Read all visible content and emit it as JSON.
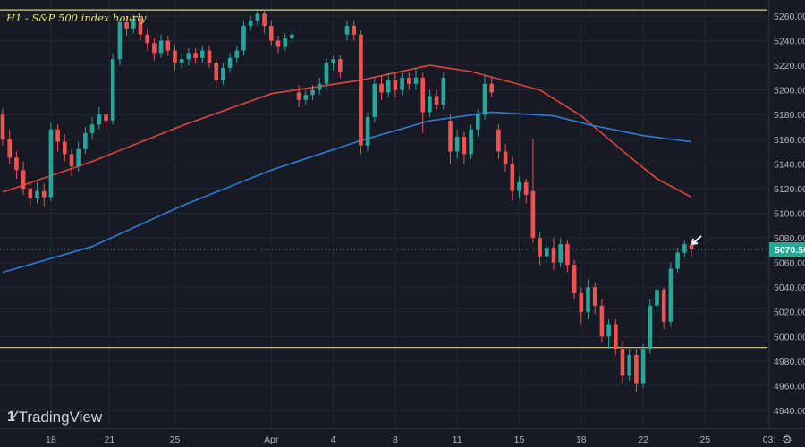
{
  "title": "H1 - S&P 500 index hourly",
  "brand": "TradingView",
  "colors": {
    "background": "#161a25",
    "up": "#26a69a",
    "down": "#ef5350",
    "ma_red": "#e0443e",
    "ma_blue": "#2f7bd6",
    "level_line": "#d9d27a",
    "grid": "#232733",
    "last_price": "#22ab94"
  },
  "chart_data": {
    "type": "candlestick",
    "title": "H1 - S&P 500 index hourly",
    "y_ticks": [
      5260,
      5240,
      5220,
      5200,
      5180,
      5160,
      5140,
      5120,
      5100,
      5080,
      5060,
      5040,
      5020,
      5000,
      4980,
      4960,
      4940
    ],
    "y_tick_labels": [
      "5260.00",
      "5240.00",
      "5220.00",
      "5200.00",
      "5180.00",
      "5160.00",
      "5140.00",
      "5120.00",
      "5100.00",
      "5080.00",
      "5060.00",
      "5040.00",
      "5020.00",
      "5000.00",
      "4980.00",
      "4960.00",
      "4940.00"
    ],
    "ylim": [
      4932,
      5273
    ],
    "x_tick_labels": [
      {
        "label": "18",
        "bar": 7
      },
      {
        "label": "21",
        "bar": 15.5
      },
      {
        "label": "25",
        "bar": 25
      },
      {
        "label": "Apr",
        "bar": 39
      },
      {
        "label": "4",
        "bar": 48
      },
      {
        "label": "8",
        "bar": 57
      },
      {
        "label": "11",
        "bar": 66
      },
      {
        "label": "15",
        "bar": 75
      },
      {
        "label": "18",
        "bar": 84
      },
      {
        "label": "22",
        "bar": 93
      },
      {
        "label": "25",
        "bar": 102
      },
      {
        "label": "03:",
        "bar": 110
      }
    ],
    "last_price": 5070.56,
    "last_price_label": "5070.56",
    "horizontal_levels": [
      5265,
      4991
    ],
    "grid": true,
    "candles_ohlc": [
      [
        5180,
        5185,
        5155,
        5160
      ],
      [
        5160,
        5168,
        5140,
        5145
      ],
      [
        5145,
        5150,
        5128,
        5135
      ],
      [
        5135,
        5142,
        5115,
        5120
      ],
      [
        5120,
        5126,
        5106,
        5112
      ],
      [
        5112,
        5125,
        5108,
        5118
      ],
      [
        5118,
        5124,
        5105,
        5113
      ],
      [
        5113,
        5174,
        5110,
        5168
      ],
      [
        5168,
        5172,
        5150,
        5158
      ],
      [
        5158,
        5164,
        5142,
        5148
      ],
      [
        5148,
        5152,
        5130,
        5138
      ],
      [
        5138,
        5158,
        5134,
        5152
      ],
      [
        5152,
        5170,
        5148,
        5165
      ],
      [
        5165,
        5178,
        5160,
        5172
      ],
      [
        5172,
        5186,
        5168,
        5180
      ],
      [
        5180,
        5184,
        5168,
        5175
      ],
      [
        5175,
        5230,
        5172,
        5225
      ],
      [
        5225,
        5258,
        5220,
        5255
      ],
      [
        5255,
        5260,
        5244,
        5250
      ],
      [
        5250,
        5261,
        5246,
        5258
      ],
      [
        5258,
        5260,
        5240,
        5245
      ],
      [
        5245,
        5250,
        5232,
        5238
      ],
      [
        5238,
        5242,
        5224,
        5230
      ],
      [
        5230,
        5245,
        5226,
        5240
      ],
      [
        5240,
        5244,
        5228,
        5232
      ],
      [
        5232,
        5236,
        5216,
        5222
      ],
      [
        5222,
        5230,
        5218,
        5225
      ],
      [
        5225,
        5234,
        5220,
        5230
      ],
      [
        5230,
        5234,
        5222,
        5226
      ],
      [
        5226,
        5236,
        5222,
        5232
      ],
      [
        5232,
        5236,
        5218,
        5222
      ],
      [
        5222,
        5226,
        5202,
        5208
      ],
      [
        5208,
        5222,
        5204,
        5218
      ],
      [
        5218,
        5230,
        5214,
        5226
      ],
      [
        5226,
        5236,
        5222,
        5232
      ],
      [
        5232,
        5256,
        5228,
        5252
      ],
      [
        5252,
        5260,
        5248,
        5256
      ],
      [
        5256,
        5266,
        5252,
        5262
      ],
      [
        5262,
        5265,
        5246,
        5252
      ],
      [
        5252,
        5256,
        5236,
        5240
      ],
      [
        5240,
        5244,
        5230,
        5235
      ],
      [
        5235,
        5246,
        5232,
        5242
      ],
      [
        5242,
        5248,
        5238,
        5245
      ],
      [
        5198,
        5204,
        5186,
        5192
      ],
      [
        5192,
        5200,
        5188,
        5196
      ],
      [
        5196,
        5204,
        5192,
        5200
      ],
      [
        5200,
        5210,
        5196,
        5205
      ],
      [
        5205,
        5226,
        5200,
        5222
      ],
      [
        5222,
        5228,
        5216,
        5225
      ],
      [
        5225,
        5228,
        5210,
        5215
      ],
      [
        5245,
        5256,
        5240,
        5252
      ],
      [
        5252,
        5256,
        5240,
        5245
      ],
      [
        5245,
        5248,
        5148,
        5155
      ],
      [
        5155,
        5182,
        5150,
        5178
      ],
      [
        5178,
        5210,
        5174,
        5205
      ],
      [
        5205,
        5212,
        5192,
        5198
      ],
      [
        5198,
        5214,
        5194,
        5208
      ],
      [
        5208,
        5214,
        5194,
        5200
      ],
      [
        5200,
        5214,
        5196,
        5210
      ],
      [
        5210,
        5214,
        5200,
        5205
      ],
      [
        5205,
        5218,
        5200,
        5210
      ],
      [
        5210,
        5214,
        5165,
        5182
      ],
      [
        5182,
        5200,
        5178,
        5195
      ],
      [
        5195,
        5200,
        5184,
        5188
      ],
      [
        5188,
        5214,
        5184,
        5210
      ],
      [
        5175,
        5180,
        5140,
        5150
      ],
      [
        5150,
        5168,
        5144,
        5162
      ],
      [
        5162,
        5166,
        5140,
        5148
      ],
      [
        5148,
        5172,
        5144,
        5168
      ],
      [
        5168,
        5184,
        5162,
        5180
      ],
      [
        5180,
        5212,
        5176,
        5205
      ],
      [
        5205,
        5210,
        5194,
        5198
      ],
      [
        5168,
        5172,
        5144,
        5150
      ],
      [
        5150,
        5156,
        5134,
        5140
      ],
      [
        5140,
        5146,
        5110,
        5118
      ],
      [
        5118,
        5130,
        5112,
        5125
      ],
      [
        5125,
        5128,
        5108,
        5115
      ],
      [
        5118,
        5160,
        5076,
        5080
      ],
      [
        5080,
        5085,
        5058,
        5065
      ],
      [
        5065,
        5078,
        5060,
        5072
      ],
      [
        5072,
        5080,
        5054,
        5060
      ],
      [
        5060,
        5080,
        5056,
        5075
      ],
      [
        5075,
        5078,
        5052,
        5058
      ],
      [
        5058,
        5062,
        5030,
        5035
      ],
      [
        5035,
        5040,
        5010,
        5020
      ],
      [
        5020,
        5046,
        5014,
        5040
      ],
      [
        5040,
        5044,
        5018,
        5025
      ],
      [
        5025,
        5030,
        4995,
        5000
      ],
      [
        5000,
        5014,
        4990,
        5010
      ],
      [
        5010,
        5014,
        4985,
        4990
      ],
      [
        4990,
        4996,
        4962,
        4968
      ],
      [
        4968,
        4990,
        4964,
        4985
      ],
      [
        4985,
        4990,
        4955,
        4962
      ],
      [
        4962,
        4994,
        4958,
        4990
      ],
      [
        4990,
        5030,
        4986,
        5025
      ],
      [
        5025,
        5042,
        5020,
        5038
      ],
      [
        5038,
        5040,
        5006,
        5012
      ],
      [
        5012,
        5060,
        5008,
        5055
      ],
      [
        5055,
        5072,
        5052,
        5068
      ],
      [
        5068,
        5078,
        5064,
        5075
      ],
      [
        5075,
        5078,
        5064,
        5070.56
      ]
    ],
    "series": [
      {
        "type": "line",
        "color": "#e0443e",
        "points": [
          [
            0,
            5117
          ],
          [
            13,
            5142
          ],
          [
            26,
            5171
          ],
          [
            39,
            5197
          ],
          [
            52,
            5208
          ],
          [
            62,
            5220
          ],
          [
            68,
            5215
          ],
          [
            78,
            5200
          ],
          [
            84,
            5179
          ],
          [
            91,
            5146
          ],
          [
            95,
            5128
          ],
          [
            100,
            5113
          ]
        ]
      },
      {
        "type": "line",
        "color": "#2f7bd6",
        "points": [
          [
            0,
            5052
          ],
          [
            13,
            5073
          ],
          [
            26,
            5106
          ],
          [
            39,
            5135
          ],
          [
            52,
            5159
          ],
          [
            62,
            5175
          ],
          [
            71,
            5182
          ],
          [
            80,
            5179
          ],
          [
            85,
            5172
          ],
          [
            93,
            5163
          ],
          [
            100,
            5158
          ]
        ]
      }
    ]
  }
}
